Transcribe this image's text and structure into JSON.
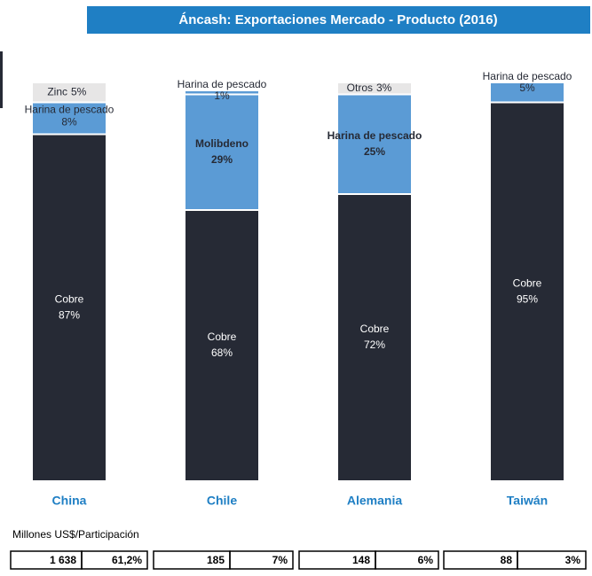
{
  "chart_data": {
    "type": "stacked_bar",
    "title": "Áncash: Exportaciones Mercado - Producto (2016)",
    "categories": [
      "China",
      "Chile",
      "Alemania",
      "Taiwán"
    ],
    "ylim": [
      0,
      100
    ],
    "series": [
      {
        "name": "Cobre",
        "color": "#262a35",
        "values": [
          87,
          68,
          72,
          95
        ],
        "value_labels": [
          "87%",
          "68%",
          "72%",
          "95%"
        ]
      },
      {
        "name": "Molibdeno",
        "color": "#5b9bd5",
        "values": [
          null,
          29,
          null,
          null
        ],
        "value_labels": [
          null,
          "29%",
          null,
          null
        ]
      },
      {
        "name": "Harina de pescado",
        "color": "#5b9bd5",
        "values": [
          8,
          1,
          25,
          5
        ],
        "value_labels": [
          "8%",
          "1%",
          "25%",
          "5%"
        ]
      },
      {
        "name": "Zinc",
        "color": "#e7e6e6",
        "values": [
          5,
          null,
          null,
          null
        ],
        "value_labels": [
          "5%",
          null,
          null,
          null
        ]
      },
      {
        "name": "Otros",
        "color": "#e7e6e6",
        "values": [
          null,
          null,
          3,
          null
        ],
        "value_labels": [
          null,
          null,
          "3%",
          null
        ]
      }
    ]
  },
  "table": {
    "caption": "Millones US$/Participación",
    "rows": [
      [
        "1 638",
        "61,2%",
        "185",
        "7%",
        "148",
        "6%",
        "88",
        "3%"
      ]
    ]
  }
}
